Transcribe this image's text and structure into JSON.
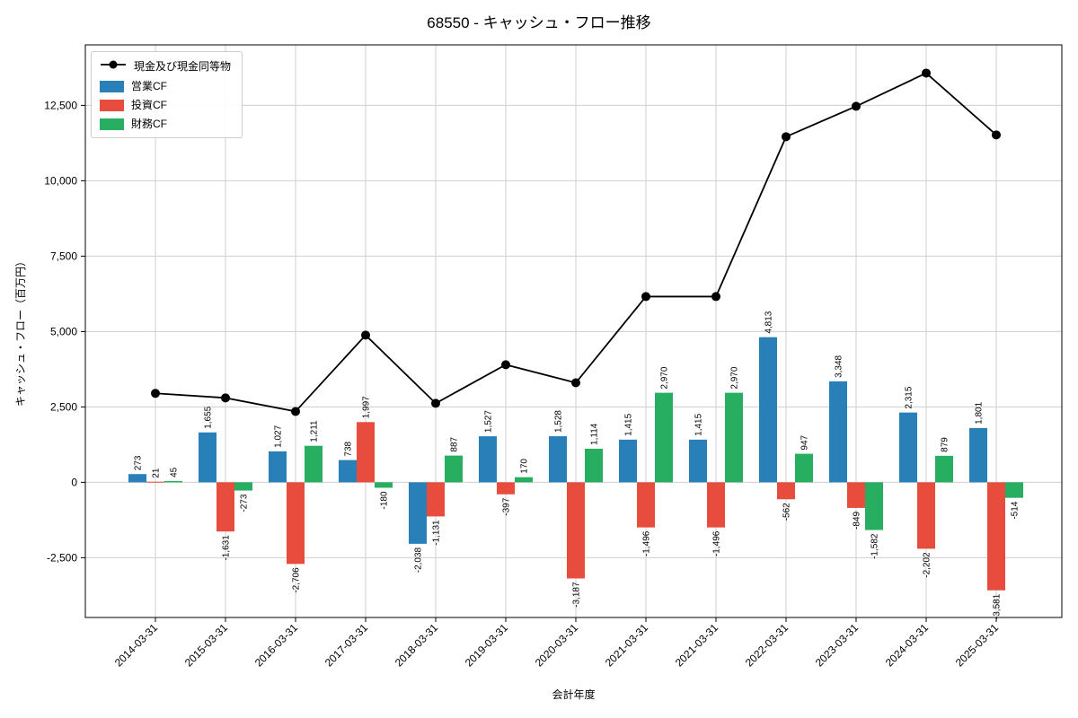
{
  "title": "68550 - キャッシュ・フロー推移",
  "chart_data": {
    "type": "bar",
    "subtype": "grouped-bar-with-line",
    "title": "68550 - キャッシュ・フロー推移",
    "xlabel": "会計年度",
    "ylabel": "キャッシュ・フロー（百万円）",
    "categories": [
      "2014-03-31",
      "2015-03-31",
      "2016-03-31",
      "2017-03-31",
      "2018-03-31",
      "2019-03-31",
      "2020-03-31",
      "2021-03-31",
      "2021-03-31",
      "2022-03-31",
      "2023-03-31",
      "2024-03-31",
      "2025-03-31"
    ],
    "bar_series": [
      {
        "name": "営業CF",
        "color": "#2980b9",
        "values": [
          273,
          1655,
          1027,
          738,
          -2038,
          1527,
          1528,
          1415,
          1415,
          4813,
          3348,
          2315,
          1801
        ]
      },
      {
        "name": "投資CF",
        "color": "#e74c3c",
        "values": [
          21,
          -1631,
          -2706,
          1997,
          -1131,
          -397,
          -3187,
          -1496,
          -1496,
          -562,
          -849,
          -2202,
          -3581
        ]
      },
      {
        "name": "財務CF",
        "color": "#27ae60",
        "values": [
          45,
          -273,
          1211,
          -180,
          887,
          170,
          1114,
          2970,
          2970,
          947,
          -1582,
          879,
          -514
        ]
      }
    ],
    "line_series": {
      "name": "現金及び現金同等物",
      "color": "#000000",
      "values": [
        2950,
        2800,
        2350,
        4880,
        2620,
        3900,
        3300,
        6160,
        6160,
        11460,
        12470,
        13570,
        11520
      ]
    },
    "yticks": [
      -2500,
      0,
      2500,
      5000,
      7500,
      10000,
      12500
    ],
    "ylim": [
      -4490,
      14500
    ],
    "grid": true,
    "legend_position": "upper-left"
  }
}
